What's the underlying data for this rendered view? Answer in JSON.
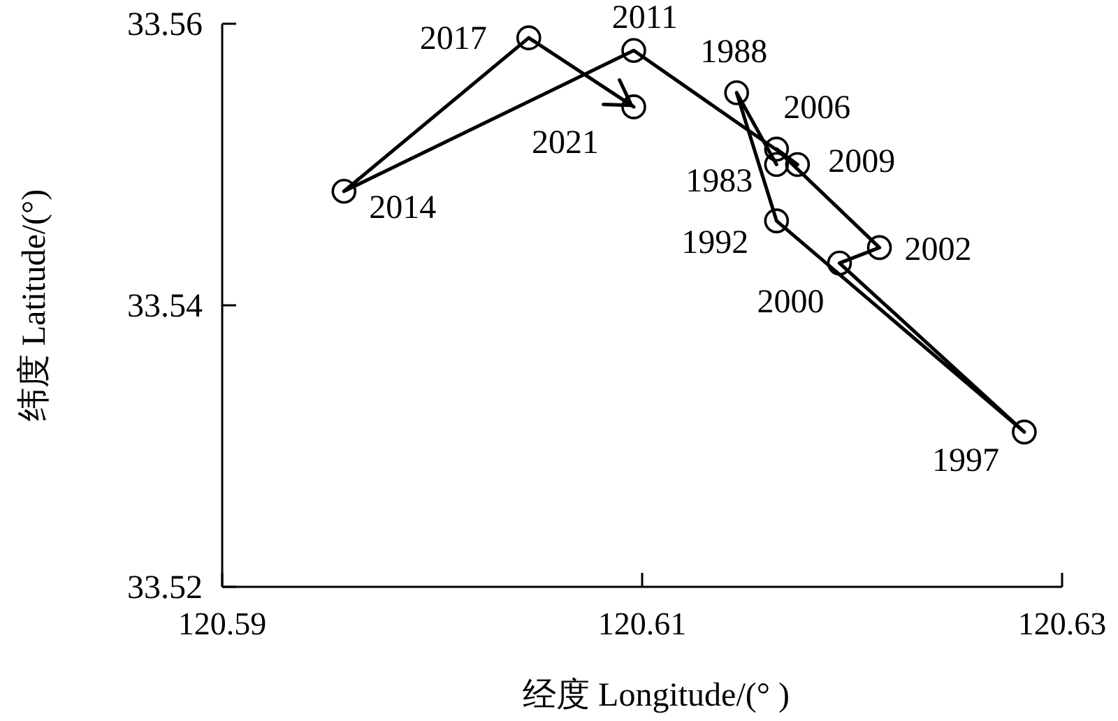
{
  "chart_data": {
    "type": "line",
    "xlabel": "经度 Longitude/(° )",
    "ylabel": "纬度 Latitude/(°)",
    "xlim": [
      120.59,
      120.63
    ],
    "ylim": [
      33.52,
      33.56
    ],
    "xticks": [
      120.59,
      120.61,
      120.63
    ],
    "yticks": [
      33.52,
      33.54,
      33.56
    ],
    "marker": "circle",
    "line_style": "solid",
    "series": [
      {
        "color": "#000000",
        "x": [
          120.6164,
          120.6145,
          120.6164,
          120.6282,
          120.6194,
          120.6213,
          120.6164,
          120.6174,
          120.6096,
          120.5958,
          120.6046,
          120.6096
        ],
        "values": [
          33.55,
          33.5551,
          33.546,
          33.531,
          33.543,
          33.5441,
          33.5511,
          33.55,
          33.5581,
          33.5481,
          33.559,
          33.5541
        ]
      }
    ],
    "annotations": [
      {
        "text": "1983",
        "x": 120.6164,
        "y": 33.55
      },
      {
        "text": "1988",
        "x": 120.6145,
        "y": 33.5551
      },
      {
        "text": "1992",
        "x": 120.6164,
        "y": 33.546
      },
      {
        "text": "1997",
        "x": 120.6282,
        "y": 33.531
      },
      {
        "text": "2000",
        "x": 120.6194,
        "y": 33.543
      },
      {
        "text": "2002",
        "x": 120.6213,
        "y": 33.5441
      },
      {
        "text": "2006",
        "x": 120.6164,
        "y": 33.5511
      },
      {
        "text": "2009",
        "x": 120.6174,
        "y": 33.55
      },
      {
        "text": "2011",
        "x": 120.6096,
        "y": 33.5581
      },
      {
        "text": "2014",
        "x": 120.5958,
        "y": 33.5481
      },
      {
        "text": "2017",
        "x": 120.6046,
        "y": 33.559
      },
      {
        "text": "2021",
        "x": 120.6096,
        "y": 33.5541
      }
    ]
  }
}
